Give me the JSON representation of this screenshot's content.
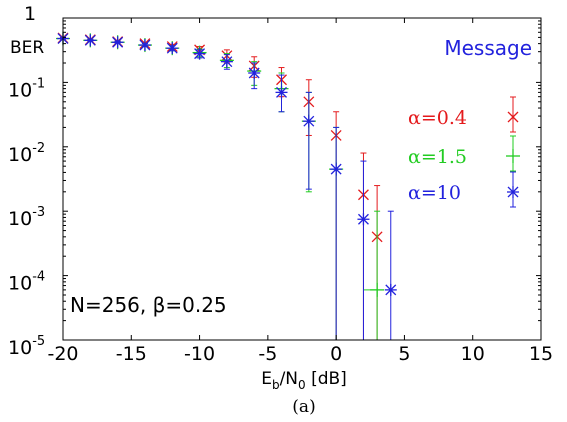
{
  "chart_data": {
    "type": "scatter",
    "title": "Message",
    "xlabel": {
      "base": "E",
      "sub1": "b",
      "mid": "/N",
      "sub2": "0",
      "tail": " [dB]"
    },
    "ylabel": "BER",
    "annotation": "N=256, β=0.25",
    "caption": "(a)",
    "xlim": [
      -20,
      15
    ],
    "ylim_log10": [
      -5,
      0
    ],
    "yscale": "log",
    "grid": false,
    "x_ticks": [
      -20,
      -15,
      -10,
      -5,
      0,
      5,
      10,
      15
    ],
    "y_ticks": [
      {
        "exp": 0,
        "base": "1",
        "sup": ""
      },
      {
        "exp": -1,
        "base": "10",
        "sup": "-1"
      },
      {
        "exp": -2,
        "base": "10",
        "sup": "-2"
      },
      {
        "exp": -3,
        "base": "10",
        "sup": "-3"
      },
      {
        "exp": -4,
        "base": "10",
        "sup": "-4"
      },
      {
        "exp": -5,
        "base": "10",
        "sup": "-5"
      }
    ],
    "legend_position": "right",
    "series": [
      {
        "name": "α=0.4",
        "color": "#e41a1c",
        "marker": "x",
        "x": [
          -20,
          -18,
          -16,
          -14,
          -12,
          -10,
          -8,
          -6,
          -4,
          -2,
          0,
          2,
          3
        ],
        "y": [
          0.49,
          0.46,
          0.43,
          0.4,
          0.36,
          0.32,
          0.26,
          0.18,
          0.11,
          0.05,
          0.015,
          0.0018,
          0.0004
        ],
        "y_low": [
          0.48,
          0.45,
          0.42,
          0.38,
          0.33,
          0.28,
          0.2,
          0.12,
          0.06,
          0.015,
          1e-05,
          1e-05,
          1e-05
        ],
        "y_high": [
          0.5,
          0.47,
          0.44,
          0.42,
          0.39,
          0.36,
          0.32,
          0.25,
          0.17,
          0.11,
          0.035,
          0.008,
          0.0025
        ]
      },
      {
        "name": "α=1.5",
        "color": "#22cc22",
        "marker": "+",
        "x": [
          -20,
          -18,
          -16,
          -14,
          -12,
          -10,
          -8,
          -6,
          -4,
          -2,
          0,
          3
        ],
        "y": [
          0.48,
          0.45,
          0.42,
          0.38,
          0.34,
          0.29,
          0.22,
          0.15,
          0.08,
          0.025,
          0.0045,
          6e-05
        ],
        "y_low": [
          0.47,
          0.44,
          0.41,
          0.36,
          0.31,
          0.25,
          0.17,
          0.09,
          0.035,
          0.002,
          1e-05,
          1e-05
        ],
        "y_high": [
          0.49,
          0.46,
          0.43,
          0.4,
          0.37,
          0.33,
          0.28,
          0.21,
          0.14,
          0.07,
          0.02,
          0.001
        ],
        "x_err": [
          [
            2,
            3
          ]
        ]
      },
      {
        "name": "α=10",
        "color": "#2222dd",
        "marker": "*",
        "x": [
          -20,
          -18,
          -16,
          -14,
          -12,
          -10,
          -8,
          -6,
          -4,
          -2,
          0,
          2,
          4
        ],
        "y": [
          0.48,
          0.45,
          0.42,
          0.38,
          0.34,
          0.28,
          0.21,
          0.14,
          0.07,
          0.025,
          0.0045,
          0.00075,
          6e-05
        ],
        "y_low": [
          0.47,
          0.44,
          0.41,
          0.36,
          0.31,
          0.24,
          0.16,
          0.08,
          0.035,
          0.0022,
          1e-05,
          1e-05,
          1e-05
        ],
        "y_high": [
          0.49,
          0.46,
          0.43,
          0.4,
          0.37,
          0.32,
          0.27,
          0.2,
          0.13,
          0.07,
          0.02,
          0.006,
          0.001
        ]
      }
    ]
  }
}
